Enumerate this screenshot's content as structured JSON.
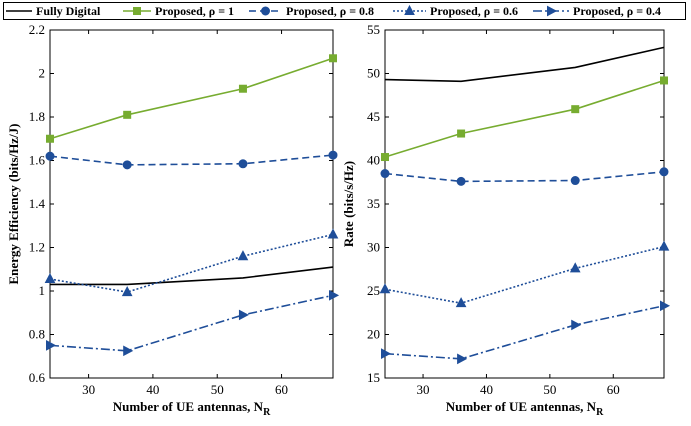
{
  "legend": {
    "entries": [
      {
        "label": "Fully Digital",
        "color": "#000000",
        "style": "solid",
        "marker": "none"
      },
      {
        "label": "Proposed, ρ = 1",
        "color": "#77ac30",
        "style": "solid",
        "marker": "square"
      },
      {
        "label": "Proposed, ρ = 0.8",
        "color": "#1f4e99",
        "style": "dashed",
        "marker": "circle"
      },
      {
        "label": "Proposed, ρ = 0.6",
        "color": "#1f4e99",
        "style": "dotted",
        "marker": "triangle-up"
      },
      {
        "label": "Proposed, ρ = 0.4",
        "color": "#1f4e99",
        "style": "dashdot",
        "marker": "triangle-right"
      }
    ]
  },
  "chart_data": [
    {
      "type": "line",
      "xlabel": "Number of UE antennas, N_R",
      "xlabel_main": "Number of UE antennas, N",
      "xlabel_sub": "R",
      "ylabel": "Energy Efficiency (bits/Hz/J)",
      "xlim": [
        24,
        68
      ],
      "ylim": [
        0.6,
        2.2
      ],
      "xticks": [
        30,
        40,
        50,
        60
      ],
      "yticks": [
        0.6,
        0.8,
        1,
        1.2,
        1.4,
        1.6,
        1.8,
        2,
        2.2
      ],
      "ytick_labels": [
        "0.6",
        "0.8",
        "1",
        "1.2",
        "1.4",
        "1.6",
        "1.8",
        "2",
        "2.2"
      ],
      "grid": false,
      "x": [
        24,
        36,
        54,
        68
      ],
      "series": [
        {
          "name": "Fully Digital",
          "values": [
            1.03,
            1.03,
            1.06,
            1.11
          ]
        },
        {
          "name": "Proposed, ρ = 1",
          "values": [
            1.7,
            1.81,
            1.93,
            2.07
          ]
        },
        {
          "name": "Proposed, ρ = 0.8",
          "values": [
            1.62,
            1.58,
            1.585,
            1.625
          ]
        },
        {
          "name": "Proposed, ρ = 0.6",
          "values": [
            1.055,
            0.995,
            1.16,
            1.26
          ]
        },
        {
          "name": "Proposed, ρ = 0.4",
          "values": [
            0.75,
            0.725,
            0.89,
            0.98
          ]
        }
      ]
    },
    {
      "type": "line",
      "xlabel": "Number of UE antennas, N_R",
      "xlabel_main": "Number of UE antennas, N",
      "xlabel_sub": "R",
      "ylabel": "Rate (bits/s/Hz)",
      "xlim": [
        24,
        68
      ],
      "ylim": [
        15,
        55
      ],
      "xticks": [
        30,
        40,
        50,
        60
      ],
      "yticks": [
        15,
        20,
        25,
        30,
        35,
        40,
        45,
        50,
        55
      ],
      "ytick_labels": [
        "15",
        "20",
        "25",
        "30",
        "35",
        "40",
        "45",
        "50",
        "55"
      ],
      "grid": false,
      "x": [
        24,
        36,
        54,
        68
      ],
      "series": [
        {
          "name": "Fully Digital",
          "values": [
            49.3,
            49.1,
            50.7,
            53.0
          ]
        },
        {
          "name": "Proposed, ρ = 1",
          "values": [
            40.4,
            43.1,
            45.9,
            49.2
          ]
        },
        {
          "name": "Proposed, ρ = 0.8",
          "values": [
            38.5,
            37.6,
            37.7,
            38.7
          ]
        },
        {
          "name": "Proposed, ρ = 0.6",
          "values": [
            25.2,
            23.6,
            27.6,
            30.1
          ]
        },
        {
          "name": "Proposed, ρ = 0.4",
          "values": [
            17.8,
            17.2,
            21.1,
            23.3
          ]
        }
      ]
    }
  ]
}
